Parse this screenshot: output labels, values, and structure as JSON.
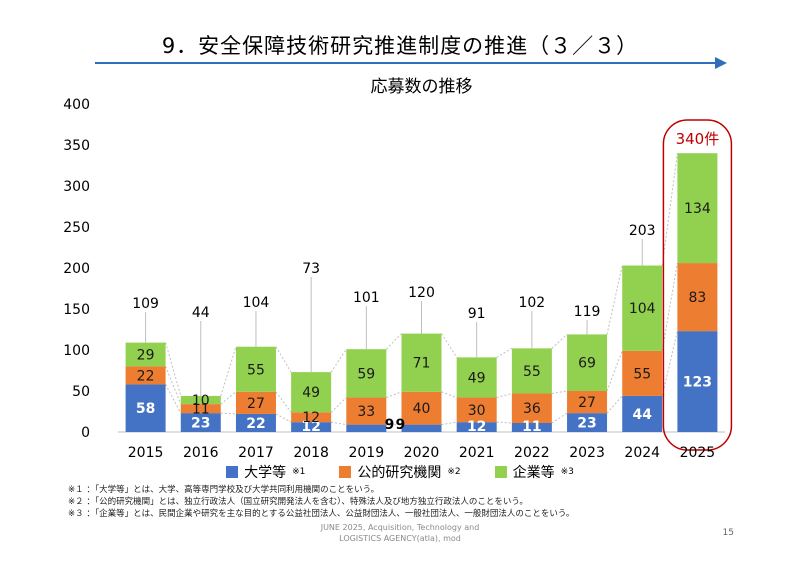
{
  "page": {
    "title": "9．安全保障技術研究推進制度の推進（３／３）",
    "footer_line1": "JUNE 2025, Acquisition, Technology and",
    "footer_line2": "LOGISTICS AGENCY(atla), mod",
    "page_number": "15"
  },
  "legend": [
    {
      "label": "大学等",
      "note": "※1",
      "color": "#4472c4"
    },
    {
      "label": "公的研究機関",
      "note": "※2",
      "color": "#ed7d31"
    },
    {
      "label": "企業等",
      "note": "※3",
      "color": "#92d050"
    }
  ],
  "notes": [
    "※１ ：「大学等」とは、大学、高等専門学校及び大学共同利用機関のことをいう。",
    "※２ ：「公的研究機関」とは、独立行政法人（国立研究開発法人を含む）、特殊法人及び地方独立行政法人のことをいう。",
    "※３ ：「企業等」とは、民間企業や研究を主な目的とする公益社団法人、公益財団法人、一般社団法人、一般財団法人のことをいう。"
  ],
  "chart_data": {
    "type": "bar",
    "stacked": true,
    "title": "応募数の推移",
    "categories": [
      "2015",
      "2016",
      "2017",
      "2018",
      "2019",
      "2020",
      "2021",
      "2022",
      "2023",
      "2024",
      "2025"
    ],
    "series": [
      {
        "name": "大学等",
        "color": "#4472c4",
        "values": [
          58,
          23,
          22,
          12,
          9,
          9,
          12,
          11,
          23,
          44,
          123
        ]
      },
      {
        "name": "公的研究機関",
        "color": "#ed7d31",
        "values": [
          22,
          11,
          27,
          12,
          33,
          40,
          30,
          36,
          27,
          55,
          83
        ]
      },
      {
        "name": "企業等",
        "color": "#92d050",
        "values": [
          29,
          10,
          55,
          49,
          59,
          71,
          49,
          55,
          69,
          104,
          134
        ]
      }
    ],
    "totals": [
      109,
      44,
      104,
      73,
      101,
      120,
      91,
      102,
      119,
      203,
      340
    ],
    "highlight": {
      "category": "2025",
      "label": "340件",
      "color": "#c00000"
    },
    "ylim": [
      0,
      400
    ],
    "yticks": [
      0,
      50,
      100,
      150,
      200,
      250,
      300,
      350,
      400
    ],
    "grid": false
  }
}
